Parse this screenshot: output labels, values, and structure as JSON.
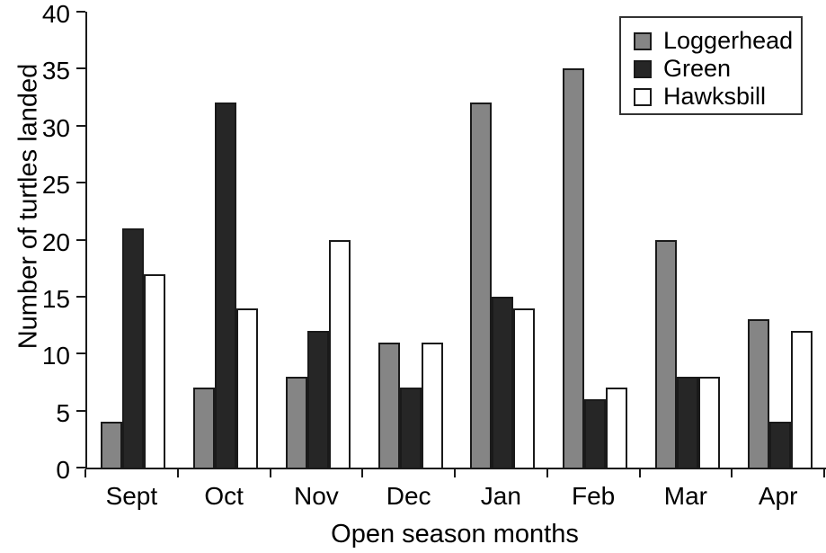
{
  "chart_data": {
    "type": "bar",
    "title": "",
    "xlabel": "Open season months",
    "ylabel": "Number of turtles landed",
    "categories": [
      "Sept",
      "Oct",
      "Nov",
      "Dec",
      "Jan",
      "Feb",
      "Mar",
      "Apr"
    ],
    "series": [
      {
        "name": "Loggerhead",
        "color": "#858585",
        "values": [
          4,
          7,
          8,
          11,
          32,
          35,
          20,
          13
        ]
      },
      {
        "name": "Green",
        "color": "#262626",
        "values": [
          21,
          32,
          12,
          7,
          15,
          6,
          8,
          4
        ]
      },
      {
        "name": "Hawksbill",
        "color": "#ffffff",
        "values": [
          17,
          14,
          20,
          11,
          14,
          7,
          8,
          12
        ]
      }
    ],
    "ylim": [
      0,
      40
    ],
    "yticks": [
      0,
      5,
      10,
      15,
      20,
      25,
      30,
      35,
      40
    ],
    "legend_position": "top-right",
    "grid": false
  },
  "colors": {
    "axis": "#1a1a1a",
    "bar_border": "#1a1a1a",
    "background": "#ffffff",
    "legend_border": "#333333"
  }
}
